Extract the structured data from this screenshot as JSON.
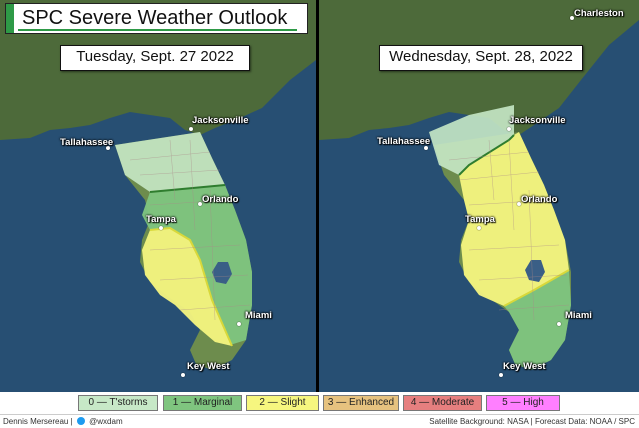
{
  "header": {
    "title": "SPC Severe Weather Outlook"
  },
  "panels": [
    {
      "date": "Tuesday, Sept. 27 2022",
      "cities": [
        "Tallahassee",
        "Jacksonville",
        "Orlando",
        "Tampa",
        "Miami",
        "Key West"
      ]
    },
    {
      "date": "Wednesday, Sept. 28, 2022",
      "cities": [
        "Charleston",
        "Tallahassee",
        "Jacksonville",
        "Orlando",
        "Tampa",
        "Miami",
        "Key West"
      ]
    }
  ],
  "legend": [
    {
      "label": "0 — T'storms",
      "color": "#c7e8c7"
    },
    {
      "label": "1 — Marginal",
      "color": "#7fc57f"
    },
    {
      "label": "2 — Slight",
      "color": "#f6f67f"
    },
    {
      "label": "3 — Enhanced",
      "color": "#e6c27f"
    },
    {
      "label": "4 — Moderate",
      "color": "#e67f7f"
    },
    {
      "label": "5 — High",
      "color": "#ff7fff"
    }
  ],
  "footer": {
    "author": "Dennis Mersereau |",
    "handle": "@wxdam",
    "credits": "Satellite Background: NASA | Forecast Data: NOAA / SPC"
  }
}
